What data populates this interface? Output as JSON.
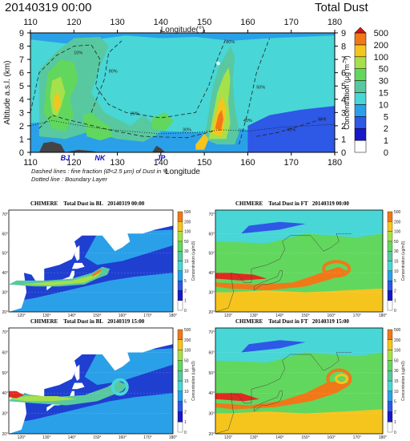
{
  "header": {
    "title": "20140319 00:00",
    "label": "Total Dust"
  },
  "colors": {
    "levels": [
      "#ffffff",
      "#1818c8",
      "#2e58e6",
      "#2aa0e8",
      "#48d6d6",
      "#58c8a0",
      "#62d75e",
      "#a6e04a",
      "#f5c51e",
      "#f07818",
      "#e02a20"
    ],
    "ocean": "#1f3fd0",
    "land": "#ffffff",
    "cap": "#c71a14"
  },
  "chart_data": [
    {
      "type": "heatmap",
      "title": "Total Dust",
      "subtitle": "20140319 00:00",
      "xlabel": "Longitude",
      "xlabel_top": "Longitude(°)",
      "ylabel": "Altitude a.s.l. (km)",
      "xlim": [
        110,
        180
      ],
      "ylim": [
        0,
        9
      ],
      "x_ticks": [
        "110",
        "120",
        "130",
        "140",
        "150",
        "160",
        "170",
        "180"
      ],
      "y_ticks": [
        "0",
        "1",
        "2",
        "3",
        "4",
        "5",
        "6",
        "7",
        "8",
        "9"
      ],
      "markers": [
        "BJ",
        "NK",
        "JP"
      ],
      "colorbar": {
        "label": "Concentration (μg m⁻³)",
        "levels": [
          "0",
          "1",
          "2",
          "5",
          "10",
          "15",
          "30",
          "50",
          "100",
          "200",
          "500"
        ]
      },
      "notes": [
        "Dashed lines : fine fraction (Ø<2.5 μm) of Dust in %",
        "Dotted line : Boundary Layer"
      ],
      "percent_labels": [
        "10%",
        "20%",
        "30%",
        "40%",
        "50%",
        "60%",
        "70%",
        "80%",
        "90%"
      ]
    },
    {
      "type": "heatmap",
      "title": "CHIMERE",
      "subtitle": "Total Dust in BL",
      "time": "20140319 00:00",
      "x_ticks": [
        "120°",
        "130°",
        "140°",
        "150°",
        "160°",
        "170°",
        "180°"
      ],
      "y_ticks": [
        "20°",
        "30°",
        "40°",
        "50°",
        "60°",
        "70°"
      ],
      "colorbar_label": "Concentration (ug/m3)",
      "colorbar_levels": [
        "0",
        "1",
        "2",
        "5",
        "10",
        "15",
        "30",
        "50",
        "100",
        "200",
        "500"
      ]
    },
    {
      "type": "heatmap",
      "title": "CHIMERE",
      "subtitle": "Total Dust in FT",
      "time": "20140319 00:00",
      "x_ticks": [
        "120°",
        "130°",
        "140°",
        "150°",
        "160°",
        "170°",
        "180°"
      ],
      "y_ticks": [
        "20°",
        "30°",
        "40°",
        "50°",
        "60°",
        "70°"
      ],
      "colorbar_label": "Concentration (ug/m3)",
      "colorbar_levels": [
        "0",
        "1",
        "2",
        "5",
        "10",
        "15",
        "30",
        "50",
        "100",
        "200",
        "500"
      ]
    },
    {
      "type": "heatmap",
      "title": "CHIMERE",
      "subtitle": "Total Dust in BL",
      "time": "20140319 15:00",
      "x_ticks": [
        "120°",
        "130°",
        "140°",
        "150°",
        "160°",
        "170°",
        "180°"
      ],
      "y_ticks": [
        "20°",
        "30°",
        "40°",
        "50°",
        "60°",
        "70°"
      ],
      "colorbar_label": "Concentration (ug/m3)",
      "colorbar_levels": [
        "0",
        "1",
        "2",
        "5",
        "10",
        "15",
        "30",
        "50",
        "100",
        "200",
        "500"
      ]
    },
    {
      "type": "heatmap",
      "title": "CHIMERE",
      "subtitle": "Total Dust in FT",
      "time": "20140319 15:00",
      "x_ticks": [
        "120°",
        "130°",
        "140°",
        "150°",
        "160°",
        "170°",
        "180°"
      ],
      "y_ticks": [
        "20°",
        "30°",
        "40°",
        "50°",
        "60°",
        "70°"
      ],
      "colorbar_label": "Concentration (ug/m3)",
      "colorbar_levels": [
        "0",
        "1",
        "2",
        "5",
        "10",
        "15",
        "30",
        "50",
        "100",
        "200",
        "500"
      ]
    }
  ]
}
